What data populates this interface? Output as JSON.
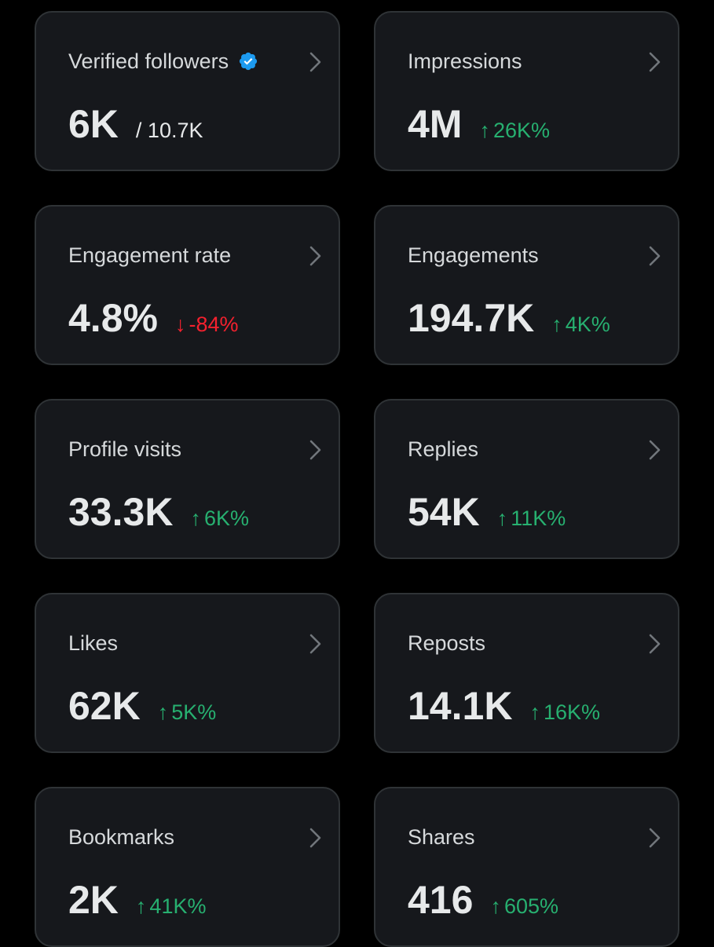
{
  "colors": {
    "background": "#000000",
    "card_background": "#16181c",
    "card_border": "#2f3336",
    "positive": "#27b070",
    "negative": "#f4212e",
    "verified_badge": "#1d9bf0"
  },
  "cards": [
    {
      "title": "Verified followers",
      "value": "6K",
      "total": "/ 10.7K",
      "verified_icon": "verified-badge-icon"
    },
    {
      "title": "Impressions",
      "value": "4M",
      "change_arrow": "↑",
      "change": "26K%",
      "direction": "up"
    },
    {
      "title": "Engagement rate",
      "value": "4.8%",
      "change_arrow": "↓",
      "change": "-84%",
      "direction": "down"
    },
    {
      "title": "Engagements",
      "value": "194.7K",
      "change_arrow": "↑",
      "change": "4K%",
      "direction": "up"
    },
    {
      "title": "Profile visits",
      "value": "33.3K",
      "change_arrow": "↑",
      "change": "6K%",
      "direction": "up"
    },
    {
      "title": "Replies",
      "value": "54K",
      "change_arrow": "↑",
      "change": "11K%",
      "direction": "up"
    },
    {
      "title": "Likes",
      "value": "62K",
      "change_arrow": "↑",
      "change": "5K%",
      "direction": "up"
    },
    {
      "title": "Reposts",
      "value": "14.1K",
      "change_arrow": "↑",
      "change": "16K%",
      "direction": "up"
    },
    {
      "title": "Bookmarks",
      "value": "2K",
      "change_arrow": "↑",
      "change": "41K%",
      "direction": "up"
    },
    {
      "title": "Shares",
      "value": "416",
      "change_arrow": "↑",
      "change": "605%",
      "direction": "up"
    }
  ]
}
